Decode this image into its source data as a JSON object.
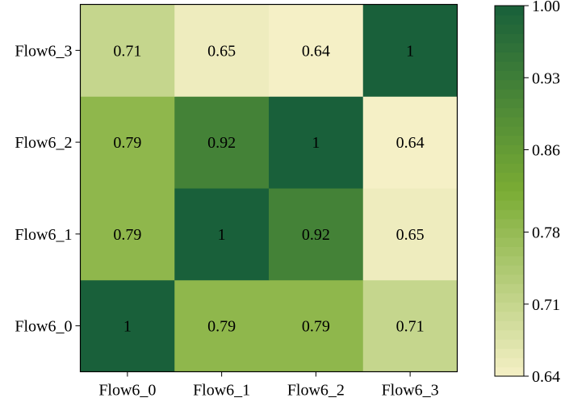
{
  "chart_data": {
    "type": "heatmap",
    "x_labels": [
      "Flow6_0",
      "Flow6_1",
      "Flow6_2",
      "Flow6_3"
    ],
    "y_labels": [
      "Flow6_0",
      "Flow6_1",
      "Flow6_2",
      "Flow6_3"
    ],
    "values": [
      [
        1,
        0.79,
        0.79,
        0.71
      ],
      [
        0.79,
        1,
        0.92,
        0.65
      ],
      [
        0.79,
        0.92,
        1,
        0.64
      ],
      [
        0.71,
        0.65,
        0.64,
        1
      ]
    ],
    "cell_labels": [
      [
        "1",
        "0.79",
        "0.79",
        "0.71"
      ],
      [
        "0.79",
        "1",
        "0.92",
        "0.65"
      ],
      [
        "0.79",
        "0.92",
        "1",
        "0.64"
      ],
      [
        "0.71",
        "0.65",
        "0.64",
        "1"
      ]
    ],
    "colorbar": {
      "range": [
        0.64,
        1.0
      ],
      "ticks": [
        0.64,
        0.71,
        0.78,
        0.86,
        0.93,
        1.0
      ],
      "tick_labels": [
        "0.64",
        "0.71",
        "0.78",
        "0.86",
        "0.93",
        "1.00"
      ],
      "colors": [
        "#f5f0c6",
        "#7aac34",
        "#19603a"
      ]
    },
    "title": "",
    "xlabel": "",
    "ylabel": ""
  }
}
